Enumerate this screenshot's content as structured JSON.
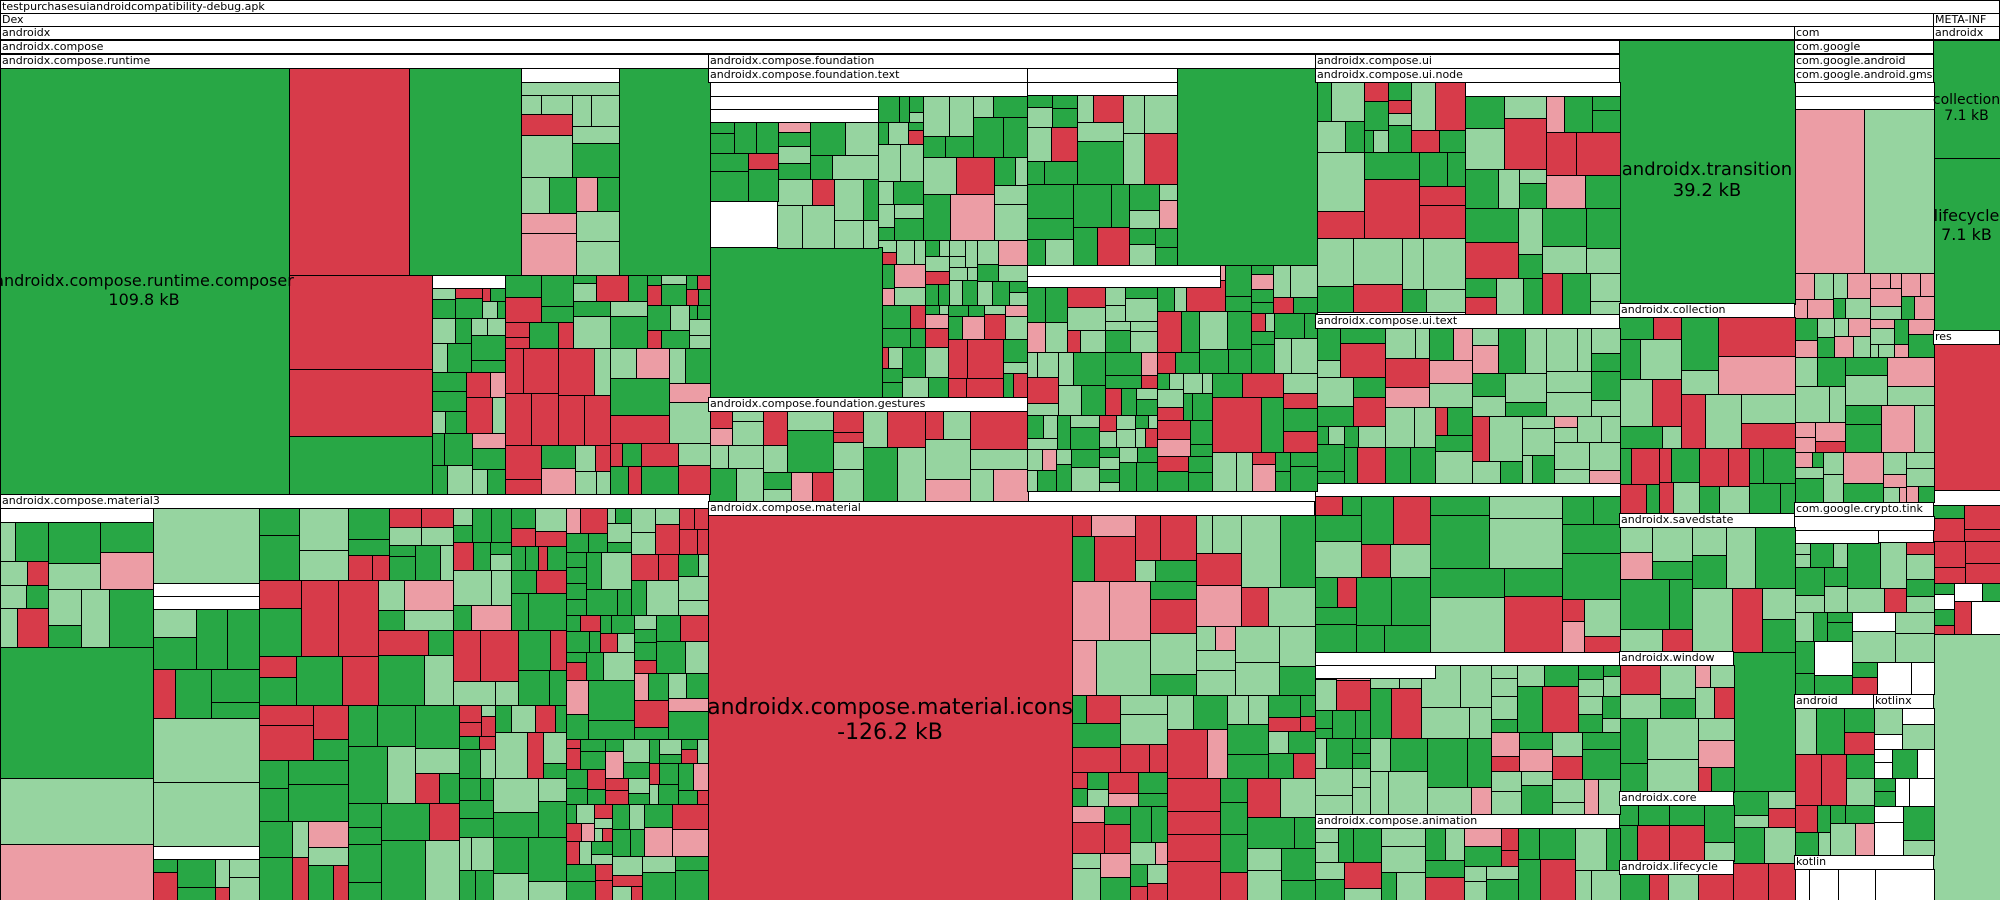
{
  "title": "testpurchasesuiandroidcompatibility-debug.apk",
  "colors": {
    "dark_green": "#28a745",
    "light_green": "#96d4a0",
    "red": "#d73b4a",
    "pink": "#ec9da5",
    "white": "#ffffff",
    "border": "#000000"
  },
  "headers": {
    "dex": "Dex",
    "androidx": "androidx",
    "compose": "androidx.compose",
    "runtime": "androidx.compose.runtime",
    "foundation": "androidx.compose.foundation",
    "foundation_text": "androidx.compose.foundation.text",
    "foundation_gestures": "androidx.compose.foundation.gestures",
    "ui": "androidx.compose.ui",
    "ui_node": "androidx.compose.ui.node",
    "ui_text": "androidx.compose.ui.text",
    "material3": "androidx.compose.material3",
    "material": "androidx.compose.material",
    "animation": "androidx.compose.animation",
    "collection": "androidx.collection",
    "savedstate": "androidx.savedstate",
    "window": "androidx.window",
    "core": "androidx.core",
    "lifecycle": "androidx.lifecycle",
    "com": "com",
    "com_google": "com.google",
    "com_google_android": "com.google.android",
    "com_google_android_gms": "com.google.android.gms",
    "crypto_tink": "com.google.crypto.tink",
    "android": "android",
    "kotlinx": "kotlinx",
    "kotlin": "kotlin",
    "meta_inf": "META-INF",
    "meta_androidx": "androidx",
    "res": "res"
  },
  "labels": {
    "composer": {
      "name": "androidx.compose.runtime.composer",
      "size": "109.8 kB"
    },
    "icons": {
      "name": "androidx.compose.material.icons",
      "size": "-126.2 kB"
    },
    "transition": {
      "name": "androidx.transition",
      "size": "39.2 kB"
    },
    "collection": {
      "name": "collection",
      "size": "7.1 kB"
    },
    "lifecycle": {
      "name": "lifecycle",
      "size": "7.1 kB"
    }
  }
}
